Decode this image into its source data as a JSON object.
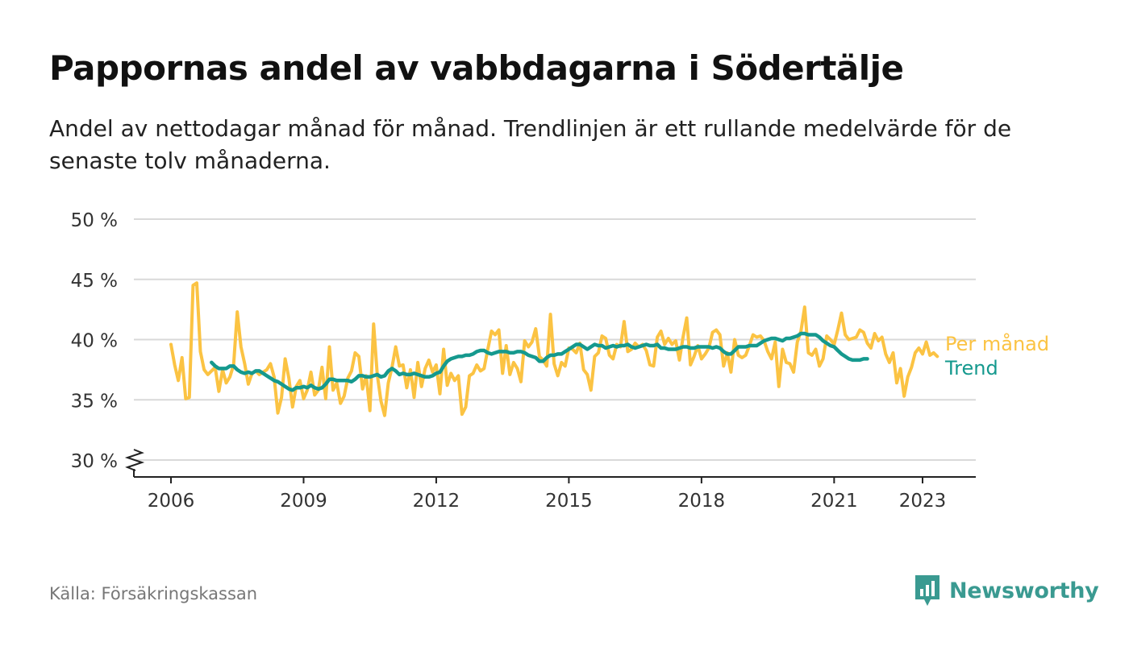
{
  "header": {
    "title": "Pappornas andel av vabbdagarna i Södertälje",
    "subtitle": "Andel av nettodagar månad för månad. Trendlinjen är ett rullande medelvärde för de senaste tolv månaderna."
  },
  "footer": {
    "source": "Källa: Försäkringskassan",
    "brand": "Newsworthy"
  },
  "colors": {
    "monthly": "#fbc343",
    "trend": "#15998e",
    "grid": "#d9d9d9",
    "brand": "#3a9a91"
  },
  "chart_data": {
    "type": "line",
    "x_unit": "year (monthly data, decimal)",
    "ylim": [
      30,
      50
    ],
    "yticks": [
      30,
      35,
      40,
      45,
      50
    ],
    "ytick_labels": [
      "30 %",
      "35 %",
      "40 %",
      "45 %",
      "50 %"
    ],
    "xlim": [
      2005.6,
      2024.2
    ],
    "xticks": [
      2006,
      2009,
      2012,
      2015,
      2018,
      2021,
      2023
    ],
    "xtick_labels": [
      "2006",
      "2009",
      "2012",
      "2015",
      "2018",
      "2021",
      "2023"
    ],
    "grid": true,
    "axis_break": true,
    "series": [
      {
        "name": "Per månad",
        "start": 2006.0,
        "step": 0.0833333,
        "values": [
          39.6,
          37.9,
          36.6,
          38.5,
          35.1,
          35.2,
          44.5,
          44.7,
          39.0,
          37.5,
          37.1,
          37.4,
          37.7,
          35.7,
          37.5,
          36.4,
          36.9,
          37.9,
          42.3,
          39.4,
          38.0,
          36.3,
          37.2,
          37.4,
          37.1,
          37.3,
          37.5,
          38.0,
          36.9,
          33.9,
          35.2,
          38.4,
          36.8,
          34.4,
          36.1,
          36.6,
          35.1,
          35.8,
          37.3,
          35.4,
          35.8,
          37.7,
          35.1,
          39.4,
          35.8,
          36.4,
          34.7,
          35.3,
          36.8,
          37.4,
          38.9,
          38.6,
          35.9,
          37.0,
          34.1,
          41.3,
          37.1,
          34.9,
          33.7,
          36.4,
          37.7,
          39.4,
          37.8,
          37.9,
          36.0,
          37.5,
          35.2,
          38.1,
          36.1,
          37.6,
          38.3,
          37.3,
          37.9,
          35.5,
          39.2,
          36.2,
          37.2,
          36.6,
          37.0,
          33.8,
          34.4,
          37.0,
          37.2,
          37.9,
          37.4,
          37.6,
          39.2,
          40.7,
          40.4,
          40.8,
          37.2,
          39.5,
          37.1,
          38.1,
          37.6,
          36.5,
          39.9,
          39.4,
          39.8,
          40.9,
          38.6,
          38.3,
          37.8,
          42.1,
          38.0,
          37.0,
          38.1,
          37.8,
          39.3,
          39.2,
          38.9,
          39.7,
          37.5,
          37.1,
          35.8,
          38.6,
          38.9,
          40.3,
          40.1,
          38.7,
          38.4,
          39.6,
          39.4,
          41.5,
          39.0,
          39.2,
          39.7,
          39.4,
          39.6,
          39.1,
          37.9,
          37.8,
          40.2,
          40.7,
          39.6,
          40.1,
          39.6,
          39.9,
          38.3,
          40.2,
          41.8,
          37.9,
          38.6,
          39.5,
          38.4,
          38.8,
          39.3,
          40.6,
          40.8,
          40.4,
          37.8,
          38.9,
          37.3,
          40.0,
          38.7,
          38.5,
          38.7,
          39.5,
          40.4,
          40.2,
          40.3,
          39.9,
          39.0,
          38.4,
          39.8,
          36.1,
          39.2,
          38.1,
          38.0,
          37.3,
          39.8,
          40.7,
          42.7,
          38.9,
          38.7,
          39.2,
          37.8,
          38.4,
          40.3,
          40.0,
          39.6,
          40.8,
          42.2,
          40.4,
          40.0,
          40.1,
          40.2,
          40.8,
          40.6,
          39.7,
          39.3,
          40.5,
          39.9,
          40.2,
          38.8,
          38.1,
          38.9,
          36.4,
          37.6,
          35.3,
          36.9,
          37.7,
          38.9,
          39.3,
          38.8,
          39.8,
          38.7,
          38.9,
          38.6
        ]
      },
      {
        "name": "Trend",
        "start": 2006.9167,
        "step": 0.0833333,
        "values": [
          38.1,
          37.8,
          37.6,
          37.6,
          37.6,
          37.8,
          37.8,
          37.5,
          37.3,
          37.2,
          37.3,
          37.2,
          37.4,
          37.4,
          37.2,
          37.0,
          36.8,
          36.6,
          36.5,
          36.3,
          36.1,
          35.9,
          35.8,
          36.0,
          36.0,
          36.1,
          36.0,
          36.2,
          36.0,
          35.9,
          36.0,
          36.3,
          36.7,
          36.7,
          36.6,
          36.6,
          36.6,
          36.6,
          36.5,
          36.7,
          37.0,
          37.0,
          36.9,
          36.9,
          37.0,
          37.1,
          36.9,
          37.0,
          37.4,
          37.6,
          37.4,
          37.1,
          37.2,
          37.1,
          37.1,
          37.2,
          37.1,
          37.0,
          36.9,
          36.9,
          37.0,
          37.2,
          37.3,
          37.8,
          38.2,
          38.4,
          38.5,
          38.6,
          38.6,
          38.7,
          38.7,
          38.8,
          39.0,
          39.1,
          39.1,
          38.9,
          38.8,
          38.9,
          39.0,
          39.0,
          39.0,
          38.9,
          38.9,
          39.0,
          39.0,
          38.9,
          38.7,
          38.6,
          38.5,
          38.2,
          38.2,
          38.5,
          38.7,
          38.7,
          38.8,
          38.8,
          39.0,
          39.2,
          39.4,
          39.6,
          39.6,
          39.4,
          39.2,
          39.4,
          39.6,
          39.5,
          39.5,
          39.3,
          39.4,
          39.5,
          39.4,
          39.5,
          39.5,
          39.6,
          39.4,
          39.3,
          39.4,
          39.5,
          39.6,
          39.5,
          39.5,
          39.6,
          39.3,
          39.3,
          39.2,
          39.2,
          39.2,
          39.3,
          39.4,
          39.4,
          39.3,
          39.3,
          39.4,
          39.4,
          39.4,
          39.4,
          39.3,
          39.4,
          39.3,
          39.0,
          38.8,
          38.8,
          39.1,
          39.4,
          39.4,
          39.4,
          39.5,
          39.5,
          39.5,
          39.7,
          39.9,
          40.0,
          40.1,
          40.1,
          40.0,
          39.9,
          40.1,
          40.1,
          40.2,
          40.3,
          40.5,
          40.5,
          40.4,
          40.4,
          40.4,
          40.2,
          39.9,
          39.7,
          39.5,
          39.4,
          39.1,
          38.8,
          38.6,
          38.4,
          38.3,
          38.3,
          38.3,
          38.4,
          38.4
        ]
      }
    ]
  }
}
